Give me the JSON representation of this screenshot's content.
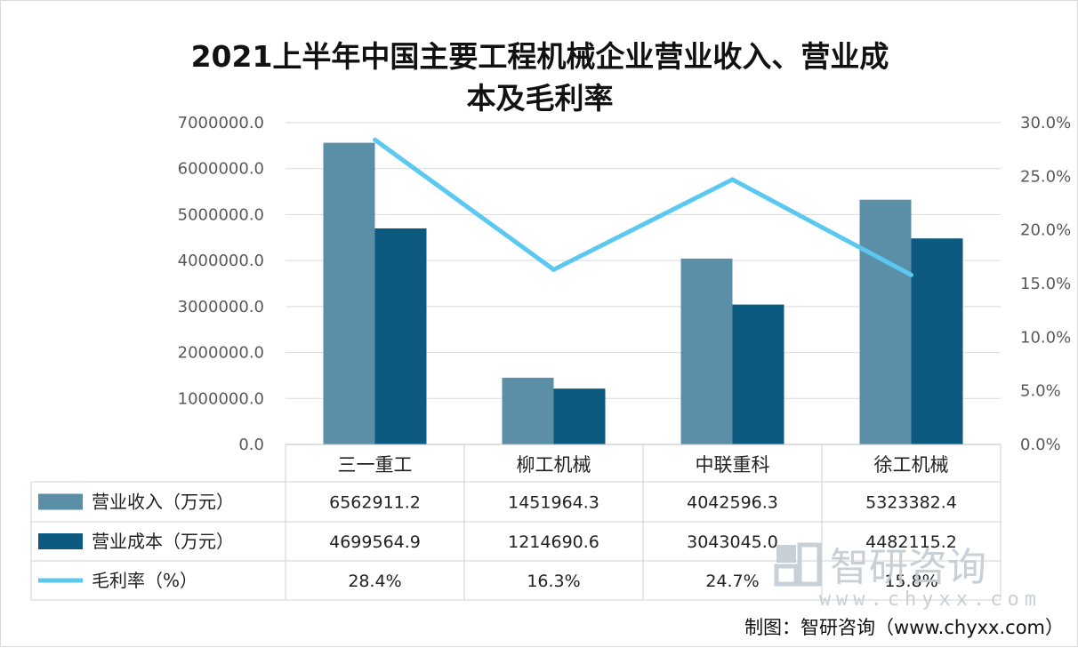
{
  "chart_data": {
    "type": "bar",
    "title_lines": [
      "2021上半年中国主要工程机械企业营业收入、营业成",
      "本及毛利率"
    ],
    "categories": [
      "三一重工",
      "柳工机械",
      "中联重科",
      "徐工机械"
    ],
    "y_left": {
      "min": 0,
      "max": 7000000,
      "ticks": [
        "0.0",
        "1000000.0",
        "2000000.0",
        "3000000.0",
        "4000000.0",
        "5000000.0",
        "6000000.0",
        "7000000.0"
      ]
    },
    "y_right": {
      "min": 0,
      "max": 30,
      "ticks": [
        "0.0%",
        "5.0%",
        "10.0%",
        "15.0%",
        "20.0%",
        "25.0%",
        "30.0%"
      ]
    },
    "grid": true,
    "legend_placement": "data-table",
    "series": [
      {
        "name": "营业收入（万元）",
        "kind": "bar",
        "axis": "left",
        "color": "#5b8fa8",
        "values": [
          6562911.2,
          1451964.3,
          4042596.3,
          5323382.4
        ],
        "labels": [
          "6562911.2",
          "1451964.3",
          "4042596.3",
          "5323382.4"
        ]
      },
      {
        "name": "营业成本（万元）",
        "kind": "bar",
        "axis": "right_bar",
        "color": "#0c5a80",
        "values": [
          4699564.9,
          1214690.6,
          3043045.0,
          4482115.2
        ],
        "labels": [
          "4699564.9",
          "1214690.6",
          "3043045.0",
          "4482115.2"
        ]
      },
      {
        "name": "毛利率（%）",
        "kind": "line",
        "axis": "right",
        "color": "#5bc8f0",
        "values": [
          28.4,
          16.3,
          24.7,
          15.8
        ],
        "labels": [
          "28.4%",
          "16.3%",
          "24.7%",
          "15.8%"
        ]
      }
    ]
  },
  "watermark": {
    "brand": "智研咨询",
    "url": "www.chyxx.com"
  },
  "source_note": "制图：智研咨询（www.chyxx.com）"
}
